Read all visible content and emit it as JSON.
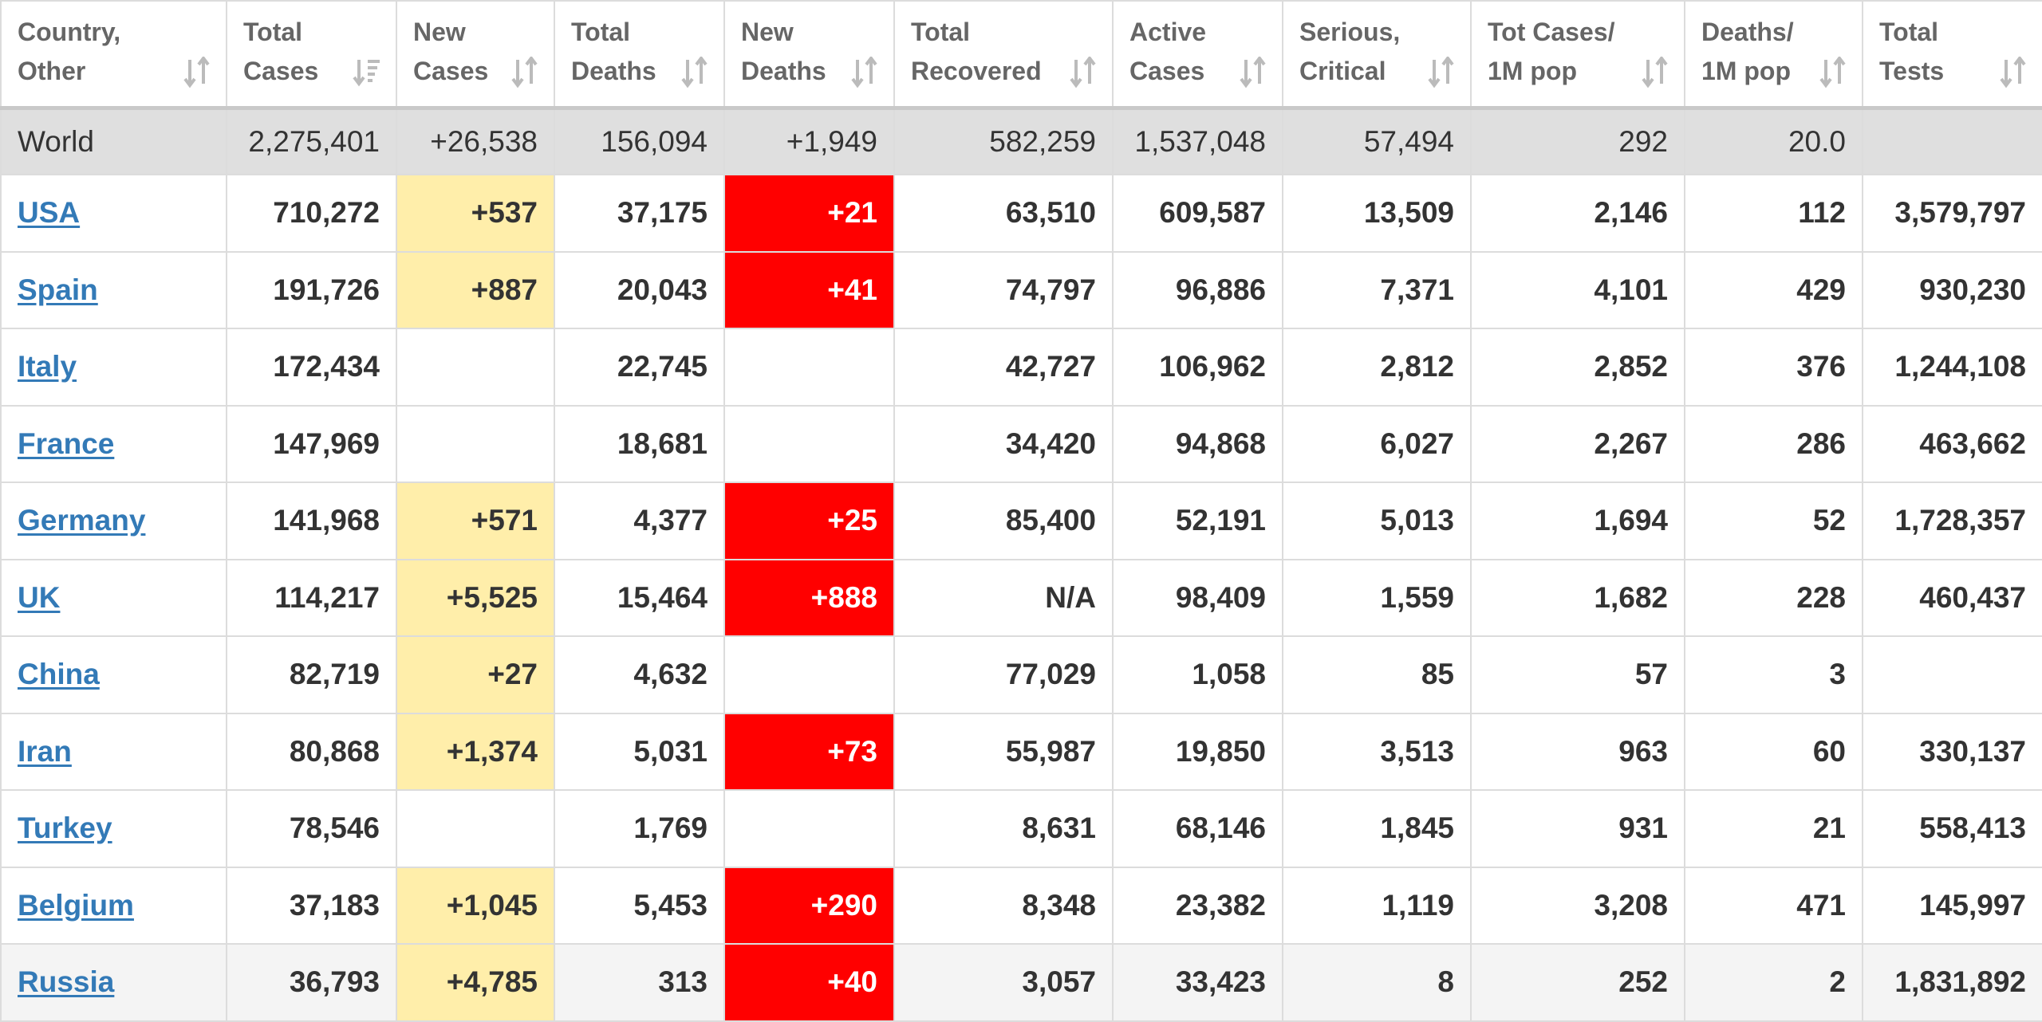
{
  "headers": [
    {
      "l1": "Country,",
      "l2": "Other"
    },
    {
      "l1": "Total",
      "l2": "Cases"
    },
    {
      "l1": "New",
      "l2": "Cases"
    },
    {
      "l1": "Total",
      "l2": "Deaths"
    },
    {
      "l1": "New",
      "l2": "Deaths"
    },
    {
      "l1": "Total",
      "l2": "Recovered"
    },
    {
      "l1": "Active",
      "l2": "Cases"
    },
    {
      "l1": "Serious,",
      "l2": "Critical"
    },
    {
      "l1": "Tot Cases/",
      "l2": "1M pop"
    },
    {
      "l1": "Deaths/",
      "l2": "1M pop"
    },
    {
      "l1": "Total",
      "l2": "Tests"
    }
  ],
  "sort_icons": [
    "sort-icon",
    "sort-desc-icon",
    "sort-icon",
    "sort-icon",
    "sort-icon",
    "sort-icon",
    "sort-icon",
    "sort-icon",
    "sort-icon",
    "sort-icon",
    "sort-icon"
  ],
  "colors": {
    "new_cases_highlight": "#ffeeaa",
    "new_deaths_highlight": "#ff0000",
    "link": "#337ab7",
    "world_row": "#dfdfdf"
  },
  "world": [
    "World",
    "2,275,401",
    "+26,538",
    "156,094",
    "+1,949",
    "582,259",
    "1,537,048",
    "57,494",
    "292",
    "20.0",
    ""
  ],
  "rows": [
    [
      "USA",
      "710,272",
      "+537",
      "37,175",
      "+21",
      "63,510",
      "609,587",
      "13,509",
      "2,146",
      "112",
      "3,579,797"
    ],
    [
      "Spain",
      "191,726",
      "+887",
      "20,043",
      "+41",
      "74,797",
      "96,886",
      "7,371",
      "4,101",
      "429",
      "930,230"
    ],
    [
      "Italy",
      "172,434",
      "",
      "22,745",
      "",
      "42,727",
      "106,962",
      "2,812",
      "2,852",
      "376",
      "1,244,108"
    ],
    [
      "France",
      "147,969",
      "",
      "18,681",
      "",
      "34,420",
      "94,868",
      "6,027",
      "2,267",
      "286",
      "463,662"
    ],
    [
      "Germany",
      "141,968",
      "+571",
      "4,377",
      "+25",
      "85,400",
      "52,191",
      "5,013",
      "1,694",
      "52",
      "1,728,357"
    ],
    [
      "UK",
      "114,217",
      "+5,525",
      "15,464",
      "+888",
      "N/A",
      "98,409",
      "1,559",
      "1,682",
      "228",
      "460,437"
    ],
    [
      "China",
      "82,719",
      "+27",
      "4,632",
      "",
      "77,029",
      "1,058",
      "85",
      "57",
      "3",
      ""
    ],
    [
      "Iran",
      "80,868",
      "+1,374",
      "5,031",
      "+73",
      "55,987",
      "19,850",
      "3,513",
      "963",
      "60",
      "330,137"
    ],
    [
      "Turkey",
      "78,546",
      "",
      "1,769",
      "",
      "8,631",
      "68,146",
      "1,845",
      "931",
      "21",
      "558,413"
    ],
    [
      "Belgium",
      "37,183",
      "+1,045",
      "5,453",
      "+290",
      "8,348",
      "23,382",
      "1,119",
      "3,208",
      "471",
      "145,997"
    ],
    [
      "Russia",
      "36,793",
      "+4,785",
      "313",
      "+40",
      "3,057",
      "33,423",
      "8",
      "252",
      "2",
      "1,831,892"
    ]
  ]
}
